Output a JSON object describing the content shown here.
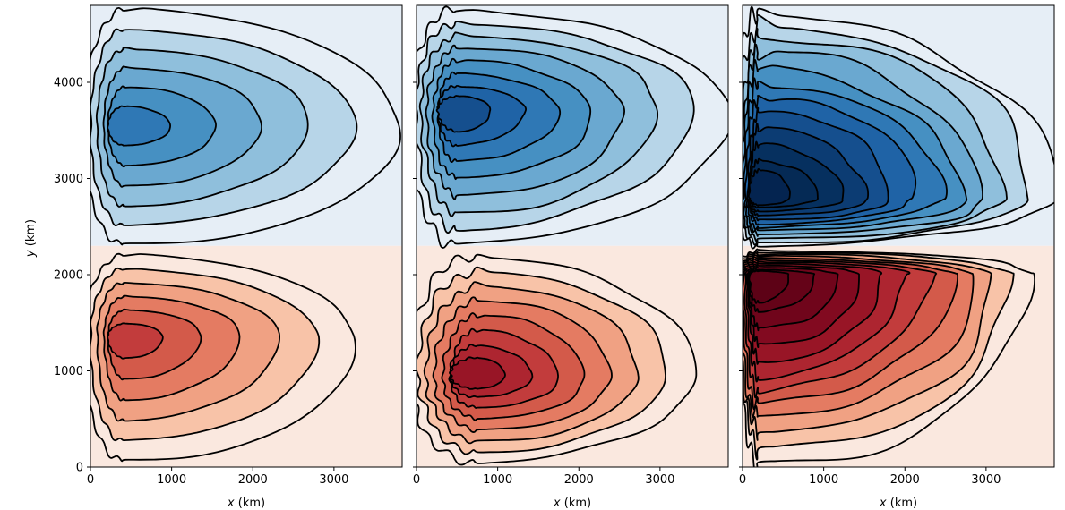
{
  "chart_data": [
    {
      "type": "contour",
      "panel": "left",
      "xlabel_var": "x",
      "xlabel_unit": " (km)",
      "ylabel_var": "y",
      "ylabel_unit": " (km)",
      "xlim": [
        0,
        3840
      ],
      "ylim": [
        0,
        4800
      ],
      "xticks": [
        0,
        1000,
        2000,
        3000
      ],
      "yticks": [
        0,
        1000,
        2000,
        3000,
        4000
      ],
      "show_yticklabels": true,
      "colormap": "RdBu_r",
      "levels": 6,
      "negative_lobe": {
        "center": [
          420,
          3550
        ],
        "extent_x": 3800,
        "extent_y": [
          2300,
          4750
        ]
      },
      "positive_lobe": {
        "center": [
          420,
          1350
        ],
        "extent_x": 3250,
        "extent_y": [
          50,
          2200
        ]
      }
    },
    {
      "type": "contour",
      "panel": "middle",
      "xlabel_var": "x",
      "xlabel_unit": " (km)",
      "xlim": [
        0,
        3840
      ],
      "ylim": [
        0,
        4800
      ],
      "xticks": [
        0,
        1000,
        2000,
        3000
      ],
      "yticks": [
        0,
        1000,
        2000,
        3000,
        4000
      ],
      "show_yticklabels": false,
      "colormap": "RdBu_r",
      "levels": 8,
      "negative_lobe": {
        "center": [
          500,
          3700
        ],
        "extent_x": 3800,
        "extent_y": [
          2300,
          4750
        ]
      },
      "positive_lobe": {
        "center": [
          750,
          950
        ],
        "extent_x": 3400,
        "extent_y": [
          50,
          2200
        ]
      }
    },
    {
      "type": "contour",
      "panel": "right",
      "xlabel_var": "x",
      "xlabel_unit": " (km)",
      "xlim": [
        0,
        3840
      ],
      "ylim": [
        0,
        4800
      ],
      "xticks": [
        0,
        1000,
        2000,
        3000
      ],
      "yticks": [
        0,
        1000,
        2000,
        3000,
        4000
      ],
      "show_yticklabels": false,
      "colormap": "RdBu_r",
      "levels": 12,
      "negative_lobe": {
        "center": [
          200,
          2800
        ],
        "extent_x": 3800,
        "extent_y": [
          2300,
          4750
        ]
      },
      "positive_lobe": {
        "center": [
          200,
          2000
        ],
        "extent_x": 3600,
        "extent_y": [
          50,
          2250
        ]
      }
    }
  ],
  "colors": {
    "neg": [
      "#e6eef6",
      "#b7d5e8",
      "#8fbfdc",
      "#6aa8d0",
      "#4690c2",
      "#2f78b5",
      "#1f63a6",
      "#154f8e",
      "#0c3c73",
      "#06305f",
      "#052a55",
      "#042450"
    ],
    "pos": [
      "#fae8df",
      "#f8c3a8",
      "#f0a183",
      "#e47b62",
      "#d35a4a",
      "#c23c3c",
      "#ad2530",
      "#981526",
      "#820a20",
      "#70051b",
      "#650318",
      "#5d0216"
    ],
    "background_pos": "#fae8df",
    "background_neg": "#e6eef6"
  }
}
